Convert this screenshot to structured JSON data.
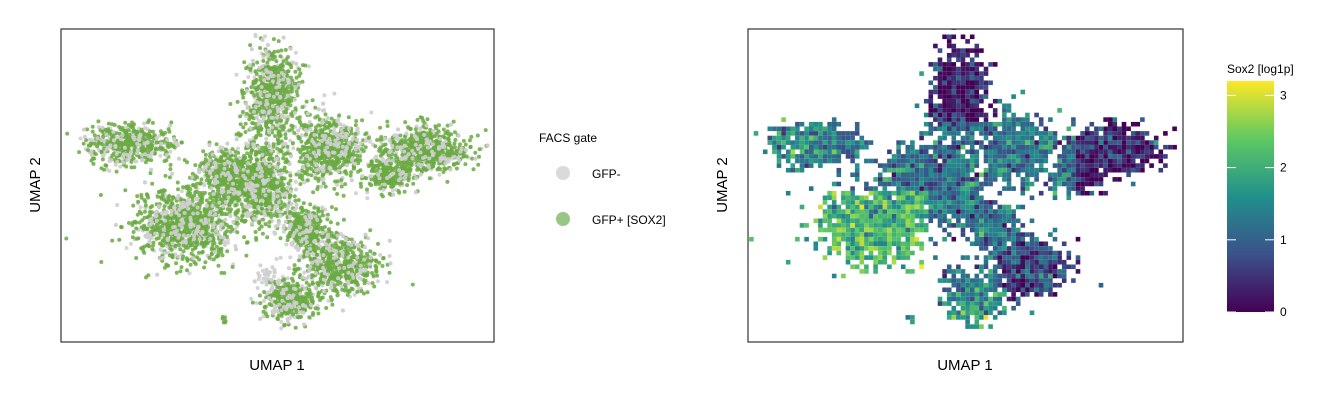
{
  "chart_data": [
    {
      "type": "scatter",
      "xlabel": "UMAP 1",
      "ylabel": "UMAP 2",
      "xlim": [
        0,
        100
      ],
      "ylim": [
        0,
        100
      ],
      "axis_ticks": "none",
      "legend": {
        "title": "FACS gate",
        "placement": "right",
        "entries": [
          {
            "label": "GFP-",
            "color": "#d3d3d3"
          },
          {
            "label": "GFP+ [SOX2]",
            "color": "#98c784"
          }
        ]
      },
      "series": [
        {
          "name": "GFP-",
          "color": "#cfcfcf"
        },
        {
          "name": "GFP+ [SOX2]",
          "color": "#6aaa42"
        }
      ]
    },
    {
      "type": "heatmap",
      "xlabel": "UMAP 1",
      "ylabel": "UMAP 2",
      "xlim": [
        0,
        100
      ],
      "ylim": [
        0,
        100
      ],
      "axis_ticks": "none",
      "colorbar": {
        "title": "Sox2 [log1p]",
        "placement": "right",
        "range": [
          0,
          3.2
        ],
        "ticks": [
          {
            "value": 0,
            "label": "0"
          },
          {
            "value": 1,
            "label": "1"
          },
          {
            "value": 2,
            "label": "2"
          },
          {
            "value": 3,
            "label": "3"
          }
        ],
        "colormap": [
          "#440154",
          "#3b528b",
          "#21908c",
          "#5ec962",
          "#fde725"
        ]
      }
    }
  ]
}
